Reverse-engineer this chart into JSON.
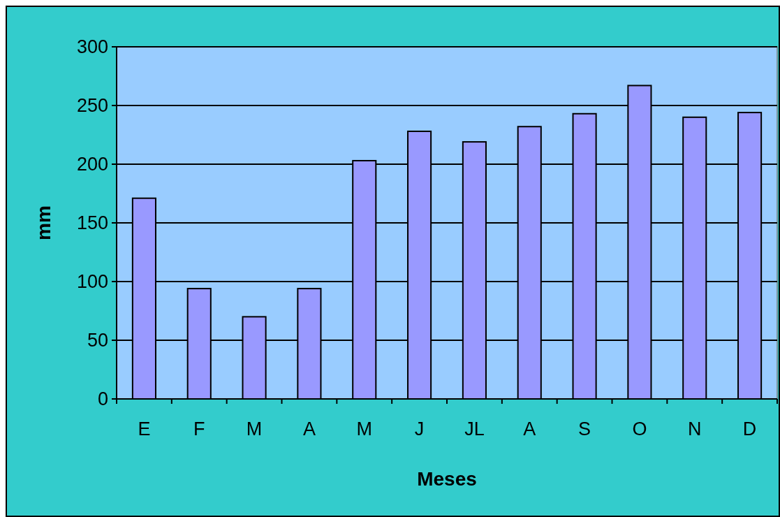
{
  "chart_data": {
    "type": "bar",
    "xlabel": "Meses",
    "ylabel": "mm",
    "categories": [
      "E",
      "F",
      "M",
      "A",
      "M",
      "J",
      "JL",
      "A",
      "S",
      "O",
      "N",
      "D"
    ],
    "values": [
      171,
      94,
      70,
      94,
      203,
      228,
      219,
      232,
      243,
      267,
      240,
      244
    ],
    "color": "#9999ff",
    "ylim": [
      0,
      300
    ],
    "yticks": [
      0,
      50,
      100,
      150,
      200,
      250,
      300
    ],
    "grid": "y"
  }
}
